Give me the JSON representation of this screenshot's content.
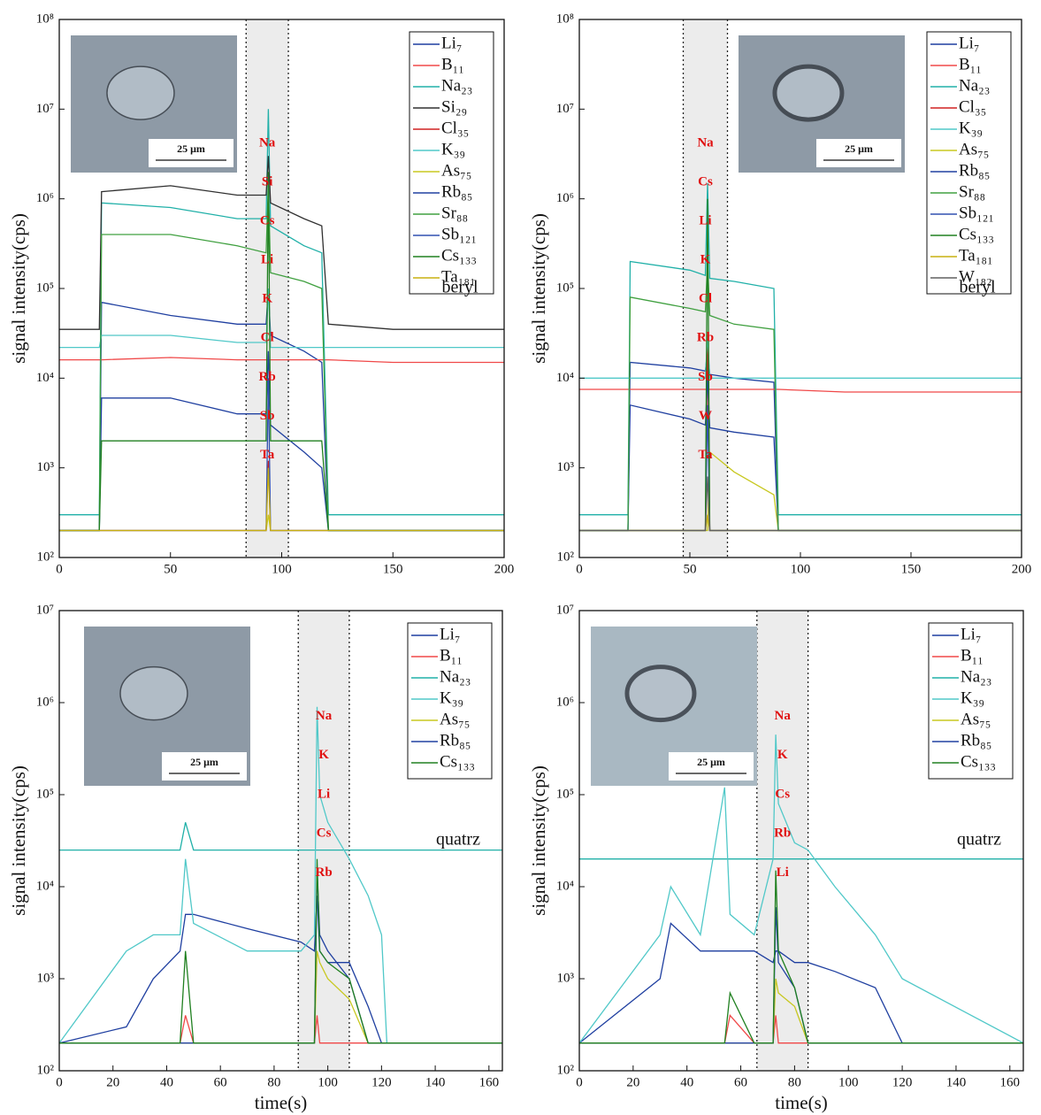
{
  "chart_data": [
    {
      "type": "line",
      "log_y": true,
      "ylabel": "signal intensity(cps)",
      "sample": "beryl",
      "scale_bar": "25 μm",
      "legend": "top-right",
      "xlim": [
        0,
        200
      ],
      "xticks": [
        0,
        50,
        100,
        150,
        200
      ],
      "ylim": [
        100,
        100000000
      ],
      "yticks": [
        {
          "value": 100,
          "label": "10²"
        },
        {
          "value": 1000,
          "label": "10³"
        },
        {
          "value": 10000,
          "label": "10⁴"
        },
        {
          "value": 100000,
          "label": "10⁵"
        },
        {
          "value": 1000000,
          "label": "10⁶"
        },
        {
          "value": 10000000,
          "label": "10⁷"
        },
        {
          "value": 100000000,
          "label": "10⁸"
        }
      ],
      "highlight": [
        84,
        103
      ],
      "annotations": [
        "Na",
        "Si",
        "Cs",
        "Li",
        "K",
        "Cl",
        "Rb",
        "Sb",
        "Ta"
      ],
      "x": [
        0,
        18,
        19,
        50,
        80,
        93,
        94,
        95,
        110,
        118,
        121,
        150,
        200
      ],
      "series": [
        {
          "name": "Li₇",
          "color": "#1f3fa0",
          "values": [
            200,
            200,
            70000,
            50000,
            40000,
            40000,
            100000,
            30000,
            20000,
            15000,
            200,
            200,
            200
          ]
        },
        {
          "name": "B₁₁",
          "color": "#f04848",
          "values": [
            16000,
            16000,
            16000,
            17000,
            16000,
            16000,
            16000,
            16000,
            16000,
            16000,
            16000,
            15000,
            15000
          ]
        },
        {
          "name": "Na₂₃",
          "color": "#20b0a8",
          "values": [
            300,
            300,
            900000,
            800000,
            600000,
            600000,
            10000000,
            500000,
            300000,
            250000,
            300,
            300,
            300
          ]
        },
        {
          "name": "Si₂₉",
          "color": "#303030",
          "values": [
            35000,
            35000,
            1200000,
            1400000,
            1100000,
            1100000,
            3000000,
            900000,
            600000,
            500000,
            40000,
            35000,
            35000
          ]
        },
        {
          "name": "Cl₃₅",
          "color": "#d02020",
          "values": [
            200,
            200,
            200,
            200,
            200,
            200,
            1200,
            200,
            200,
            200,
            200,
            200,
            200
          ]
        },
        {
          "name": "K₃₉",
          "color": "#50c8c8",
          "values": [
            22000,
            22000,
            30000,
            30000,
            25000,
            25000,
            100000,
            22000,
            22000,
            22000,
            22000,
            22000,
            22000
          ]
        },
        {
          "name": "As₇₅",
          "color": "#c8c820",
          "values": [
            200,
            200,
            200,
            200,
            200,
            200,
            300,
            200,
            200,
            200,
            200,
            200,
            200
          ]
        },
        {
          "name": "Rb₈₅",
          "color": "#2040a0",
          "values": [
            200,
            200,
            6000,
            6000,
            4000,
            4000,
            20000,
            3000,
            1500,
            1000,
            200,
            200,
            200
          ]
        },
        {
          "name": "Sr₈₈",
          "color": "#40a040",
          "values": [
            200,
            200,
            400000,
            400000,
            300000,
            250000,
            1500000,
            150000,
            120000,
            100000,
            200,
            200,
            200
          ]
        },
        {
          "name": "Sb₁₂₁",
          "color": "#3050b0",
          "values": [
            200,
            200,
            200,
            200,
            200,
            200,
            10000,
            200,
            200,
            200,
            200,
            200,
            200
          ]
        },
        {
          "name": "Cs₁₃₃",
          "color": "#208020",
          "values": [
            200,
            200,
            2000,
            2000,
            2000,
            2000,
            2000000,
            2000,
            2000,
            2000,
            200,
            200,
            200
          ]
        },
        {
          "name": "Ta₁₈₁",
          "color": "#c8b010",
          "values": [
            200,
            200,
            200,
            200,
            200,
            200,
            1000,
            200,
            200,
            200,
            200,
            200,
            200
          ]
        }
      ]
    },
    {
      "type": "line",
      "log_y": true,
      "ylabel": "signal intensity(cps)",
      "sample": "beryl",
      "scale_bar": "25 μm",
      "legend": "top-right",
      "xlim": [
        0,
        200
      ],
      "xticks": [
        0,
        50,
        100,
        150,
        200
      ],
      "ylim": [
        100,
        100000000
      ],
      "yticks": [
        {
          "value": 100,
          "label": "10²"
        },
        {
          "value": 1000,
          "label": "10³"
        },
        {
          "value": 10000,
          "label": "10⁴"
        },
        {
          "value": 100000,
          "label": "10⁵"
        },
        {
          "value": 1000000,
          "label": "10⁶"
        },
        {
          "value": 10000000,
          "label": "10⁷"
        },
        {
          "value": 100000000,
          "label": "10⁸"
        }
      ],
      "highlight": [
        47,
        67
      ],
      "annotations": [
        "Na",
        "Cs",
        "Li",
        "K",
        "Cl",
        "Rb",
        "Sb",
        "W",
        "Ta"
      ],
      "x": [
        0,
        22,
        23,
        50,
        57,
        58,
        59,
        70,
        88,
        90,
        120,
        200
      ],
      "series": [
        {
          "name": "Li₇",
          "color": "#1f3fa0",
          "values": [
            200,
            200,
            15000,
            13000,
            12000,
            20000,
            11000,
            10000,
            9000,
            200,
            200,
            200
          ]
        },
        {
          "name": "B₁₁",
          "color": "#f04848",
          "values": [
            7500,
            7500,
            7500,
            7500,
            7500,
            7500,
            7500,
            7500,
            7500,
            7500,
            7000,
            7000
          ]
        },
        {
          "name": "Na₂₃",
          "color": "#20b0a8",
          "values": [
            300,
            300,
            200000,
            160000,
            140000,
            1500000,
            130000,
            120000,
            100000,
            300,
            300,
            300
          ]
        },
        {
          "name": "Cl₃₅",
          "color": "#d02020",
          "values": [
            200,
            200,
            200,
            200,
            200,
            30000,
            200,
            200,
            200,
            200,
            200,
            200
          ]
        },
        {
          "name": "K₃₉",
          "color": "#50c8c8",
          "values": [
            10000,
            10000,
            10000,
            10000,
            10000,
            30000,
            10000,
            10000,
            10000,
            10000,
            10000,
            10000
          ]
        },
        {
          "name": "As₇₅",
          "color": "#c8c820",
          "values": [
            200,
            200,
            200,
            200,
            200,
            200,
            1500,
            900,
            500,
            200,
            200,
            200
          ]
        },
        {
          "name": "Rb₈₅",
          "color": "#2040a0",
          "values": [
            200,
            200,
            5000,
            3500,
            3000,
            10000,
            2800,
            2500,
            2200,
            200,
            200,
            200
          ]
        },
        {
          "name": "Sr₈₈",
          "color": "#40a040",
          "values": [
            200,
            200,
            80000,
            60000,
            55000,
            200000,
            50000,
            40000,
            35000,
            200,
            200,
            200
          ]
        },
        {
          "name": "Sb₁₂₁",
          "color": "#3050b0",
          "values": [
            200,
            200,
            200,
            200,
            200,
            5000,
            200,
            200,
            200,
            200,
            200,
            200
          ]
        },
        {
          "name": "Cs₁₃₃",
          "color": "#208020",
          "values": [
            200,
            200,
            200,
            200,
            200,
            1000000,
            200,
            200,
            200,
            200,
            200,
            200
          ]
        },
        {
          "name": "Ta₁₈₁",
          "color": "#c8b010",
          "values": [
            200,
            200,
            200,
            200,
            200,
            300,
            200,
            200,
            200,
            200,
            200,
            200
          ]
        },
        {
          "name": "W₁₈₂",
          "color": "#606060",
          "values": [
            200,
            200,
            200,
            200,
            200,
            800,
            200,
            200,
            200,
            200,
            200,
            200
          ]
        }
      ]
    },
    {
      "type": "line",
      "log_y": true,
      "ylabel": "signal intensity(cps)",
      "xlabel": "time(s)",
      "sample": "quatrz",
      "scale_bar": "25 μm",
      "legend": "top-right",
      "xlim": [
        0,
        165
      ],
      "xticks": [
        0,
        20,
        40,
        60,
        80,
        100,
        120,
        140,
        160
      ],
      "ylim": [
        100,
        10000000
      ],
      "yticks": [
        {
          "value": 100,
          "label": "10²"
        },
        {
          "value": 1000,
          "label": "10³"
        },
        {
          "value": 10000,
          "label": "10⁴"
        },
        {
          "value": 100000,
          "label": "10⁵"
        },
        {
          "value": 1000000,
          "label": "10⁶"
        },
        {
          "value": 10000000,
          "label": "10⁷"
        }
      ],
      "highlight": [
        89,
        108
      ],
      "annotations": [
        "Na",
        "K",
        "Li",
        "Cs",
        "Rb"
      ],
      "x": [
        0,
        25,
        35,
        45,
        47,
        50,
        70,
        90,
        95,
        96,
        97,
        100,
        108,
        115,
        120,
        122,
        140,
        165
      ],
      "series": [
        {
          "name": "Li₇",
          "color": "#1f3fa0",
          "values": [
            200,
            300,
            1000,
            2000,
            5000,
            5000,
            3500,
            2500,
            2000,
            8000,
            2000,
            1500,
            1500,
            500,
            200,
            200,
            200,
            200
          ]
        },
        {
          "name": "B₁₁",
          "color": "#f04848",
          "values": [
            200,
            200,
            200,
            200,
            400,
            200,
            200,
            200,
            200,
            400,
            200,
            200,
            200,
            200,
            200,
            200,
            200,
            200
          ]
        },
        {
          "name": "Na₂₃",
          "color": "#20b0a8",
          "values": [
            25000,
            25000,
            25000,
            25000,
            50000,
            25000,
            25000,
            25000,
            25000,
            25000,
            25000,
            25000,
            25000,
            25000,
            25000,
            25000,
            25000,
            25000
          ]
        },
        {
          "name": "K₃₉",
          "color": "#50c8c8",
          "values": [
            200,
            2000,
            3000,
            3000,
            20000,
            4000,
            2000,
            2000,
            3000,
            900000,
            100000,
            50000,
            20000,
            8000,
            3000,
            200,
            200,
            200
          ]
        },
        {
          "name": "As₇₅",
          "color": "#c8c820",
          "values": [
            200,
            200,
            200,
            200,
            200,
            200,
            200,
            200,
            200,
            2000,
            1500,
            1000,
            600,
            200,
            200,
            200,
            200,
            200
          ]
        },
        {
          "name": "Rb₈₅",
          "color": "#2040a0",
          "values": [
            200,
            200,
            200,
            200,
            200,
            200,
            200,
            200,
            200,
            15000,
            3000,
            2000,
            1000,
            200,
            200,
            200,
            200,
            200
          ]
        },
        {
          "name": "Cs₁₃₃",
          "color": "#208020",
          "values": [
            200,
            200,
            200,
            200,
            2000,
            200,
            200,
            200,
            200,
            20000,
            2000,
            1500,
            1000,
            200,
            200,
            200,
            200,
            200
          ]
        }
      ]
    },
    {
      "type": "line",
      "log_y": true,
      "ylabel": "signal intensity(cps)",
      "xlabel": "time(s)",
      "sample": "quatrz",
      "scale_bar": "25 μm",
      "legend": "top-right",
      "xlim": [
        0,
        165
      ],
      "xticks": [
        0,
        20,
        40,
        60,
        80,
        100,
        120,
        140,
        160
      ],
      "ylim": [
        100,
        10000000
      ],
      "yticks": [
        {
          "value": 100,
          "label": "10²"
        },
        {
          "value": 1000,
          "label": "10³"
        },
        {
          "value": 10000,
          "label": "10⁴"
        },
        {
          "value": 100000,
          "label": "10⁵"
        },
        {
          "value": 1000000,
          "label": "10⁶"
        },
        {
          "value": 10000000,
          "label": "10⁷"
        }
      ],
      "highlight": [
        66,
        85
      ],
      "annotations": [
        "Na",
        "K",
        "Cs",
        "Rb",
        "Li"
      ],
      "x": [
        0,
        30,
        34,
        45,
        54,
        56,
        65,
        72,
        73,
        74,
        80,
        85,
        95,
        110,
        120,
        165
      ],
      "series": [
        {
          "name": "Li₇",
          "color": "#1f3fa0",
          "values": [
            200,
            1000,
            4000,
            2000,
            2000,
            2000,
            2000,
            1500,
            2000,
            2000,
            1500,
            1500,
            1200,
            800,
            200,
            200
          ]
        },
        {
          "name": "B₁₁",
          "color": "#f04848",
          "values": [
            200,
            200,
            200,
            200,
            200,
            400,
            200,
            200,
            400,
            200,
            200,
            200,
            200,
            200,
            200,
            200
          ]
        },
        {
          "name": "Na₂₃",
          "color": "#20b0a8",
          "values": [
            20000,
            20000,
            20000,
            20000,
            20000,
            20000,
            20000,
            20000,
            20000,
            20000,
            20000,
            20000,
            20000,
            20000,
            20000,
            20000
          ]
        },
        {
          "name": "K₃₉",
          "color": "#50c8c8",
          "values": [
            200,
            3000,
            10000,
            3000,
            120000,
            5000,
            3000,
            20000,
            450000,
            80000,
            30000,
            25000,
            10000,
            3000,
            1000,
            200
          ]
        },
        {
          "name": "As₇₅",
          "color": "#c8c820",
          "values": [
            200,
            200,
            200,
            200,
            200,
            200,
            200,
            200,
            1000,
            700,
            500,
            200,
            200,
            200,
            200,
            200
          ]
        },
        {
          "name": "Rb₈₅",
          "color": "#2040a0",
          "values": [
            200,
            200,
            200,
            200,
            200,
            200,
            200,
            200,
            6000,
            1500,
            800,
            200,
            200,
            200,
            200,
            200
          ]
        },
        {
          "name": "Cs₁₃₃",
          "color": "#208020",
          "values": [
            200,
            200,
            200,
            200,
            200,
            700,
            200,
            200,
            15000,
            2000,
            800,
            200,
            200,
            200,
            200,
            200
          ]
        }
      ]
    }
  ]
}
